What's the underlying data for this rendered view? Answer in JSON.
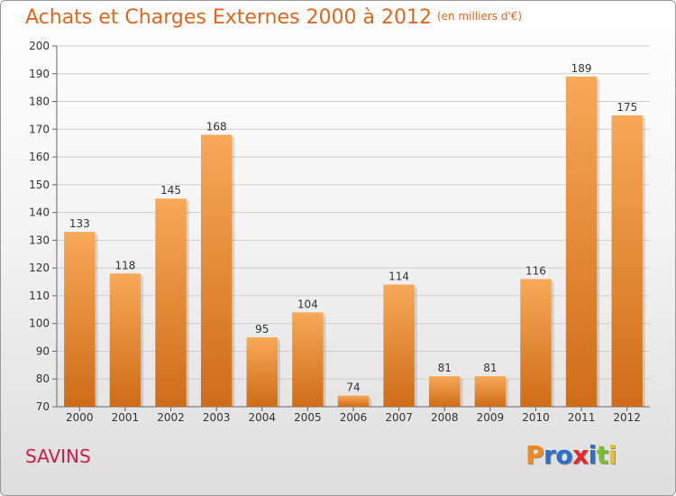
{
  "header": {
    "title": "Achats et Charges Externes 2000 à 2012",
    "unit": "(en milliers d'€)"
  },
  "footer": {
    "commune": "SAVINS",
    "logo_letters": [
      "P",
      "r",
      "o",
      "x",
      "i",
      "t",
      "i"
    ],
    "logo_colors": [
      "#f08a1c",
      "#2a6fc9",
      "#2a6fc9",
      "#e8262a",
      "#2a6fc9",
      "#7bbf2a",
      "#f0c01c"
    ]
  },
  "chart_data": {
    "type": "bar",
    "title": "Achats et Charges Externes 2000 à 2012",
    "subtitle": "(en milliers d'€)",
    "xlabel": "",
    "ylabel": "",
    "categories": [
      "2000",
      "2001",
      "2002",
      "2003",
      "2004",
      "2005",
      "2006",
      "2007",
      "2008",
      "2009",
      "2010",
      "2011",
      "2012"
    ],
    "values": [
      133,
      118,
      145,
      168,
      95,
      104,
      74,
      114,
      81,
      81,
      116,
      189,
      175
    ],
    "ylim": [
      70,
      200
    ],
    "yticks": [
      70,
      80,
      90,
      100,
      110,
      120,
      130,
      140,
      150,
      160,
      170,
      180,
      190,
      200
    ],
    "grid": true,
    "bar_color_top": "#f7a957",
    "bar_color_bottom": "#cf6c17"
  }
}
